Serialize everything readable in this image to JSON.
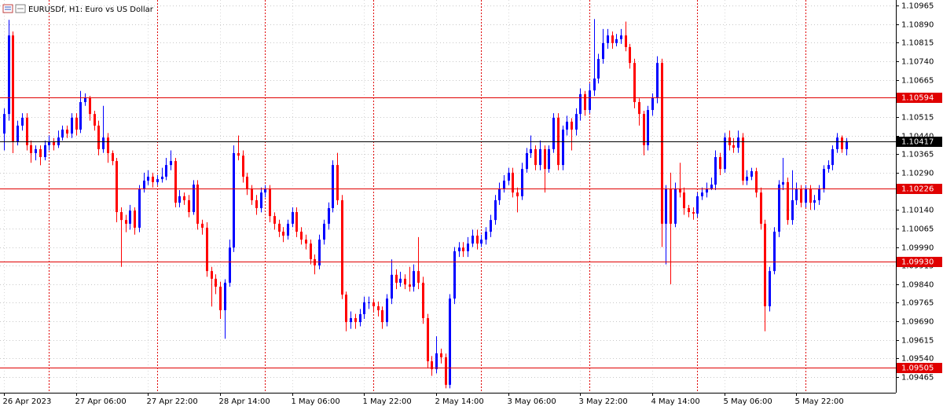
{
  "chart_data": {
    "type": "candlestick",
    "title": "EURUSDf, H1:  Euro vs US Dollar",
    "up_color": "#0000ff",
    "down_color": "#ff0000",
    "grid": true,
    "ylim": [
      1.09402,
      1.10987
    ],
    "yticks": [
      1.10965,
      {
        "value": 1.1089,
        "label": "1.10890"
      },
      1.10815,
      {
        "value": 1.1074,
        "label": "1.10740"
      },
      1.10665,
      1.10515,
      {
        "value": 1.1044,
        "label": "1.10440"
      },
      1.10365,
      {
        "value": 1.1029,
        "label": "1.10290"
      },
      {
        "value": 1.1014,
        "label": "1.10140"
      },
      1.10065,
      {
        "value": 1.0999,
        "label": "1.09990"
      },
      1.09915,
      {
        "value": 1.0984,
        "label": "1.09840"
      },
      1.09765,
      {
        "value": 1.0969,
        "label": "1.09690"
      },
      1.09615,
      {
        "value": 1.0954,
        "label": "1.09540"
      },
      1.09465
    ],
    "levels": [
      {
        "value": 1.10594,
        "label": "1.10594",
        "color": "#e00000"
      },
      {
        "value": 1.10417,
        "label": "1.10417",
        "color": "#000000"
      },
      {
        "value": 1.10226,
        "label": "1.10226",
        "color": "#e00000"
      },
      {
        "value": 1.0993,
        "label": "1.09930",
        "color": "#e00000"
      },
      {
        "value": 1.09505,
        "label": "1.09505",
        "color": "#e00000"
      }
    ],
    "categories": [
      "26 Apr 2023",
      null,
      null,
      null,
      null,
      null,
      null,
      null,
      null,
      null,
      null,
      null,
      null,
      null,
      null,
      null,
      "27 Apr 06:00",
      null,
      null,
      null,
      null,
      null,
      null,
      null,
      null,
      null,
      null,
      null,
      null,
      null,
      null,
      null,
      "27 Apr 22:00",
      null,
      null,
      null,
      null,
      null,
      null,
      null,
      null,
      null,
      null,
      null,
      null,
      null,
      null,
      null,
      "28 Apr 14:00",
      null,
      null,
      null,
      null,
      null,
      null,
      null,
      null,
      null,
      null,
      null,
      null,
      null,
      null,
      null,
      "1 May 06:00",
      null,
      null,
      null,
      null,
      null,
      null,
      null,
      null,
      null,
      null,
      null,
      null,
      null,
      null,
      null,
      "1 May 22:00",
      null,
      null,
      null,
      null,
      null,
      null,
      null,
      null,
      null,
      null,
      null,
      null,
      null,
      null,
      null,
      "2 May 14:00",
      null,
      null,
      null,
      null,
      null,
      null,
      null,
      null,
      null,
      null,
      null,
      null,
      null,
      null,
      null,
      "3 May 06:00",
      null,
      null,
      null,
      null,
      null,
      null,
      null,
      null,
      null,
      null,
      null,
      null,
      null,
      null,
      null,
      "3 May 22:00",
      null,
      null,
      null,
      null,
      null,
      null,
      null,
      null,
      null,
      null,
      null,
      null,
      null,
      null,
      null,
      "4 May 14:00",
      null,
      null,
      null,
      null,
      null,
      null,
      null,
      null,
      null,
      null,
      null,
      null,
      null,
      null,
      null,
      "5 May 06:00",
      null,
      null,
      null,
      null,
      null,
      null,
      null,
      null,
      null,
      null,
      null,
      null,
      null,
      null,
      null,
      "5 May 22:00",
      null,
      null,
      null,
      null,
      null,
      null,
      null,
      null,
      null,
      null,
      null
    ],
    "open": [
      1.10448,
      1.10527,
      1.10844,
      1.10416,
      1.1048,
      1.10512,
      1.10401,
      1.10369,
      1.10385,
      1.10353,
      1.10401,
      1.10416,
      1.10401,
      1.10432,
      1.10464,
      1.10448,
      1.10512,
      1.10464,
      1.10575,
      1.10591,
      1.10527,
      1.1048,
      1.10385,
      1.10432,
      1.10369,
      1.10337,
      1.10131,
      1.10099,
      1.10084,
      1.10137,
      1.10068,
      1.10226,
      1.10258,
      1.10274,
      1.10252,
      1.10264,
      1.10274,
      1.10321,
      1.10337,
      1.10169,
      1.10195,
      1.10179,
      1.10131,
      1.10242,
      1.10084,
      1.10068,
      1.09893,
      1.09862,
      1.0983,
      1.09735,
      1.09846,
      1.09988,
      1.10369,
      1.10359,
      1.10274,
      1.10226,
      1.10179,
      1.10147,
      1.1021,
      1.10226,
      1.10115,
      1.10084,
      1.10052,
      1.10036,
      1.10084,
      1.10131,
      1.10052,
      1.1002,
      1.10004,
      1.09941,
      1.09916,
      1.1002,
      1.10084,
      1.10147,
      1.10321,
      1.10179,
      1.09798,
      1.09687,
      1.09703,
      1.09687,
      1.09719,
      1.09767,
      1.09767,
      1.09751,
      1.09735,
      1.09687,
      1.09782,
      1.09878,
      1.09846,
      1.09862,
      1.09839,
      1.0983,
      1.09893,
      1.09846,
      1.09703,
      1.09529,
      1.09497,
      1.09561,
      1.09545,
      1.09434,
      1.09782,
      1.09973,
      1.09988,
      1.09973,
      1.10004,
      1.10036,
      1.10004,
      1.1002,
      1.10052,
      1.10099,
      1.10179,
      1.10226,
      1.10258,
      1.1029,
      1.1021,
      1.10195,
      1.10305,
      1.10369,
      1.10385,
      1.10321,
      1.10385,
      1.10305,
      1.10385,
      1.10512,
      1.10321,
      1.10464,
      1.10496,
      1.10464,
      1.10527,
      1.10607,
      1.10543,
      1.10622,
      1.1067,
      1.10749,
      1.10813,
      1.10844,
      1.10813,
      1.10829,
      1.10844,
      1.10797,
      1.10733,
      1.10575,
      1.10527,
      1.10401,
      1.10543,
      1.10591,
      1.10733,
      1.10084,
      1.10226,
      1.10084,
      1.10226,
      1.1021,
      1.10147,
      1.10131,
      1.10125,
      1.10195,
      1.1021,
      1.10226,
      1.10242,
      1.10353,
      1.10305,
      1.10432,
      1.10401,
      1.10391,
      1.10432,
      1.10258,
      1.10274,
      1.10296,
      1.1021,
      1.10084,
      1.09751,
      1.09893,
      1.10052,
      1.10242,
      1.10252,
      1.10099,
      1.10179,
      1.10226,
      1.10169,
      1.10226,
      1.10169,
      1.10179,
      1.10226,
      1.10305,
      1.10321,
      1.10385,
      1.10432,
      1.10385
    ],
    "high": [
      1.1055,
      1.10907,
      1.1086,
      1.105,
      1.1053,
      1.1053,
      1.1042,
      1.104,
      1.104,
      1.1042,
      1.1044,
      1.1043,
      1.1046,
      1.1048,
      1.1048,
      1.1053,
      1.1053,
      1.1062,
      1.1061,
      1.106,
      1.1054,
      1.105,
      1.1056,
      1.1045,
      1.1038,
      1.1035,
      1.1015,
      1.1012,
      1.1016,
      1.1015,
      1.1024,
      1.1029,
      1.103,
      1.1029,
      1.1028,
      1.1031,
      1.1035,
      1.1038,
      1.1035,
      1.1022,
      1.1021,
      1.102,
      1.1026,
      1.1026,
      1.101,
      1.1009,
      1.0991,
      1.0988,
      1.0985,
      1.0986,
      1.1002,
      1.104,
      1.1044,
      1.1038,
      1.1029,
      1.1024,
      1.102,
      1.1023,
      1.1024,
      1.1024,
      1.1013,
      1.101,
      1.1007,
      1.101,
      1.1015,
      1.1015,
      1.1007,
      1.1004,
      1.1002,
      1.0996,
      1.1004,
      1.101,
      1.1017,
      1.1034,
      1.1037,
      1.102,
      1.0981,
      1.0973,
      1.0972,
      1.0974,
      1.0979,
      1.0979,
      1.0978,
      1.0977,
      1.0975,
      1.098,
      1.0994,
      1.099,
      1.0989,
      1.0988,
      1.0991,
      1.0992,
      1.1003,
      1.0987,
      1.0972,
      1.0955,
      1.0963,
      1.0958,
      1.0956,
      1.098,
      1.0999,
      1.1001,
      1.1001,
      1.1003,
      1.1006,
      1.1006,
      1.1004,
      1.1007,
      1.1012,
      1.102,
      1.1025,
      1.1028,
      1.1031,
      1.1031,
      1.1023,
      1.1033,
      1.1039,
      1.1044,
      1.104,
      1.1042,
      1.104,
      1.104,
      1.1053,
      1.1053,
      1.1048,
      1.1052,
      1.1051,
      1.1055,
      1.1063,
      1.1062,
      1.1065,
      1.1091,
      1.1077,
      1.1087,
      1.1087,
      1.1086,
      1.1085,
      1.1087,
      1.109,
      1.1081,
      1.1075,
      1.1059,
      1.1054,
      1.1056,
      1.1061,
      1.1076,
      1.1075,
      1.1024,
      1.1029,
      1.1025,
      1.1033,
      1.1023,
      1.1016,
      1.1015,
      1.1021,
      1.1023,
      1.1025,
      1.1027,
      1.1038,
      1.1037,
      1.1045,
      1.1046,
      1.1043,
      1.1046,
      1.1045,
      1.103,
      1.1031,
      1.1031,
      1.1023,
      1.101,
      1.0991,
      1.1007,
      1.1026,
      1.1035,
      1.1027,
      1.103,
      1.1025,
      1.1024,
      1.1024,
      1.1024,
      1.102,
      1.1024,
      1.1032,
      1.1034,
      1.104,
      1.1045,
      1.1044,
      1.1043
    ],
    "low": [
      1.1038,
      1.105,
      1.10369,
      1.104,
      1.1046,
      1.1038,
      1.1033,
      1.1034,
      1.1032,
      1.1034,
      1.1038,
      1.1038,
      1.1039,
      1.1042,
      1.1043,
      1.1043,
      1.1044,
      1.1045,
      1.1056,
      1.105,
      1.1046,
      1.1036,
      1.1037,
      1.1033,
      1.1032,
      1.1009,
      1.0991,
      1.1005,
      1.1006,
      1.1004,
      1.1005,
      1.1021,
      1.1024,
      1.1023,
      1.1024,
      1.1025,
      1.1026,
      1.103,
      1.1015,
      1.1015,
      1.1016,
      1.1011,
      1.1012,
      1.1006,
      1.1004,
      1.0987,
      1.0975,
      1.098,
      1.097,
      1.0962,
      1.0983,
      1.0997,
      1.1034,
      1.1025,
      1.102,
      1.1016,
      1.1012,
      1.1013,
      1.1019,
      1.1009,
      1.1006,
      1.1003,
      1.1001,
      1.1002,
      1.1007,
      1.1003,
      1.1,
      1.0998,
      1.0992,
      1.0988,
      1.099,
      1.1,
      1.1006,
      1.1013,
      1.1016,
      1.0978,
      1.0965,
      1.0966,
      1.0966,
      1.0967,
      1.097,
      1.0974,
      1.0973,
      1.0971,
      1.0966,
      1.0967,
      1.0976,
      1.0982,
      1.0983,
      1.0982,
      1.0981,
      1.0981,
      1.0982,
      1.0968,
      1.095,
      1.0947,
      1.0948,
      1.0952,
      1.0942,
      1.0942,
      1.0976,
      1.0995,
      1.0995,
      1.0995,
      1.0999,
      1.0998,
      1.0999,
      1.1,
      1.1003,
      1.1008,
      1.1016,
      1.1021,
      1.1024,
      1.1019,
      1.1013,
      1.1018,
      1.1029,
      1.1035,
      1.103,
      1.103,
      1.1021,
      1.1029,
      1.1037,
      1.103,
      1.103,
      1.1044,
      1.1038,
      1.1044,
      1.105,
      1.1052,
      1.1053,
      1.106,
      1.1065,
      1.1073,
      1.1079,
      1.1079,
      1.108,
      1.1081,
      1.1078,
      1.1071,
      1.1055,
      1.1048,
      1.1036,
      1.1038,
      1.1052,
      1.1057,
      1.0999,
      1.0992,
      1.0984,
      1.1007,
      1.1019,
      1.1012,
      1.1011,
      1.101,
      1.1011,
      1.1018,
      1.1019,
      1.1022,
      1.1022,
      1.1028,
      1.1029,
      1.1038,
      1.1037,
      1.1037,
      1.1024,
      1.1024,
      1.1026,
      1.1019,
      1.1006,
      1.0965,
      1.0973,
      1.0988,
      1.1003,
      1.1022,
      1.1008,
      1.1008,
      1.1016,
      1.1015,
      1.1015,
      1.1014,
      1.1014,
      1.1016,
      1.1021,
      1.1029,
      1.103,
      1.1037,
      1.1037,
      1.1036
    ],
    "close": [
      1.10527,
      1.10844,
      1.10416,
      1.1048,
      1.10512,
      1.10401,
      1.10369,
      1.10385,
      1.10353,
      1.10401,
      1.10416,
      1.10401,
      1.10432,
      1.10464,
      1.10448,
      1.10512,
      1.10464,
      1.10575,
      1.10591,
      1.10527,
      1.1048,
      1.10385,
      1.10432,
      1.10369,
      1.10337,
      1.10131,
      1.10099,
      1.10084,
      1.10137,
      1.10068,
      1.10226,
      1.10258,
      1.10274,
      1.10252,
      1.10264,
      1.10274,
      1.10321,
      1.10337,
      1.10169,
      1.10195,
      1.10179,
      1.10131,
      1.10242,
      1.10084,
      1.10068,
      1.09893,
      1.09862,
      1.0983,
      1.09735,
      1.09846,
      1.09988,
      1.10369,
      1.10359,
      1.10274,
      1.10226,
      1.10179,
      1.10147,
      1.1021,
      1.10226,
      1.10115,
      1.10084,
      1.10052,
      1.10036,
      1.10084,
      1.10131,
      1.10052,
      1.1002,
      1.10004,
      1.09941,
      1.09916,
      1.1002,
      1.10084,
      1.10147,
      1.10321,
      1.10179,
      1.09798,
      1.09687,
      1.09703,
      1.09687,
      1.09719,
      1.09767,
      1.09767,
      1.09751,
      1.09735,
      1.09687,
      1.09782,
      1.09878,
      1.09846,
      1.09862,
      1.09839,
      1.0983,
      1.09893,
      1.09846,
      1.09703,
      1.09529,
      1.09497,
      1.09561,
      1.09545,
      1.09434,
      1.09782,
      1.09973,
      1.09988,
      1.09973,
      1.10004,
      1.10036,
      1.10004,
      1.1002,
      1.10052,
      1.10099,
      1.10179,
      1.10226,
      1.10258,
      1.1029,
      1.1021,
      1.10195,
      1.10305,
      1.10369,
      1.10385,
      1.10321,
      1.10385,
      1.10305,
      1.10385,
      1.10512,
      1.10321,
      1.10464,
      1.10496,
      1.10464,
      1.10527,
      1.10607,
      1.10543,
      1.10622,
      1.1067,
      1.10749,
      1.10813,
      1.10844,
      1.10813,
      1.10829,
      1.10844,
      1.10797,
      1.10733,
      1.10575,
      1.10527,
      1.10401,
      1.10543,
      1.10591,
      1.10733,
      1.10084,
      1.10226,
      1.10084,
      1.10226,
      1.1021,
      1.10147,
      1.10131,
      1.10125,
      1.10195,
      1.1021,
      1.10226,
      1.10242,
      1.10353,
      1.10305,
      1.10432,
      1.10401,
      1.10391,
      1.10432,
      1.10258,
      1.10274,
      1.10296,
      1.1021,
      1.10084,
      1.09751,
      1.09893,
      1.10052,
      1.10242,
      1.10252,
      1.10099,
      1.10179,
      1.10226,
      1.10169,
      1.10226,
      1.10169,
      1.10179,
      1.10226,
      1.10305,
      1.10321,
      1.10385,
      1.10432,
      1.10385,
      1.10417
    ]
  }
}
